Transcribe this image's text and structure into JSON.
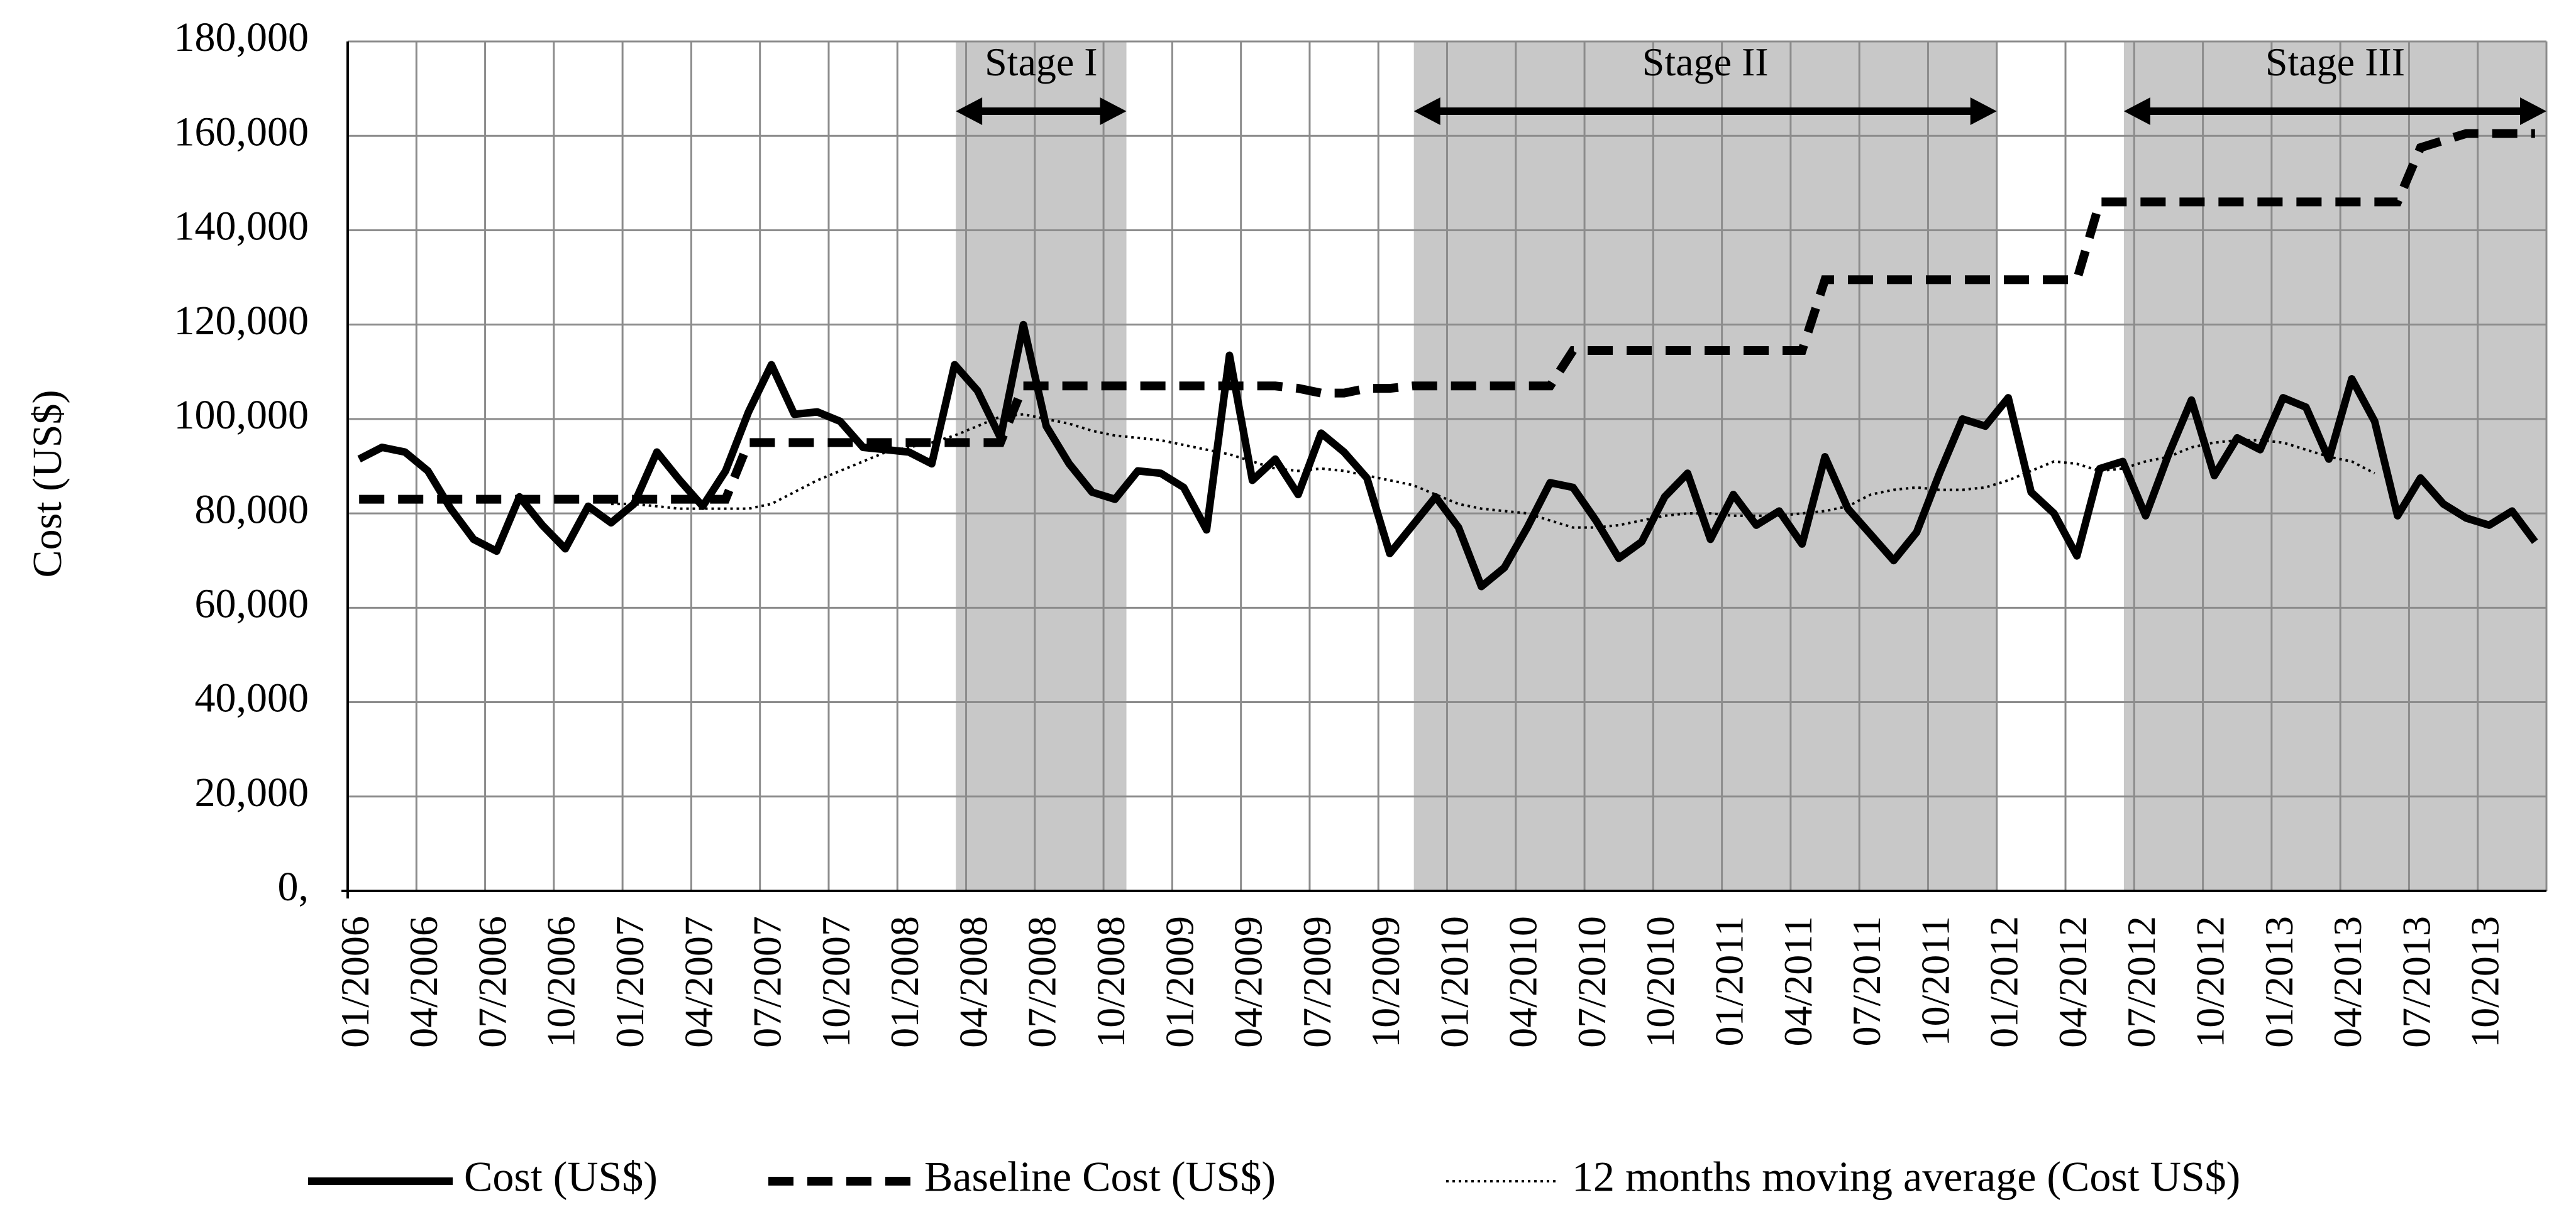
{
  "chart_data": {
    "type": "line",
    "title": "",
    "ylabel": "Cost (US$)",
    "xlabel": "",
    "ylim": [
      0,
      180000
    ],
    "y_ticks": [
      0,
      20000,
      40000,
      60000,
      80000,
      100000,
      120000,
      140000,
      160000,
      180000
    ],
    "y_tick_labels": [
      "0,",
      "20,000",
      "40,000",
      "60,000",
      "80,000",
      "100,000",
      "120,000",
      "140,000",
      "160,000",
      "180,000"
    ],
    "x_range": [
      "01/2006",
      "12/2013"
    ],
    "x_tick_labels": [
      "01/2006",
      "04/2006",
      "07/2006",
      "10/2006",
      "01/2007",
      "04/2007",
      "07/2007",
      "10/2007",
      "01/2008",
      "04/2008",
      "07/2008",
      "10/2008",
      "01/2009",
      "04/2009",
      "07/2009",
      "10/2009",
      "01/2010",
      "04/2010",
      "07/2010",
      "10/2010",
      "01/2011",
      "04/2011",
      "07/2011",
      "10/2011",
      "01/2012",
      "04/2012",
      "07/2012",
      "10/2012",
      "01/2013",
      "04/2013",
      "07/2013",
      "10/2013"
    ],
    "grid": true,
    "legend_position": "bottom",
    "stages": [
      {
        "label": "Stage I",
        "start": "03/2008",
        "end": "10/2008"
      },
      {
        "label": "Stage II",
        "start": "11/2009",
        "end": "12/2011"
      },
      {
        "label": "Stage III",
        "start": "06/2012",
        "end": "12/2013"
      }
    ],
    "stage_shade_color": "#c8c8c8",
    "series": [
      {
        "name": "Cost (US$)",
        "style": "solid",
        "values": [
          91500,
          94000,
          93000,
          89000,
          81000,
          74500,
          72000,
          83500,
          77500,
          72500,
          81500,
          78000,
          82000,
          93000,
          87000,
          81500,
          89000,
          101500,
          111500,
          101000,
          101500,
          99500,
          94000,
          93500,
          93000,
          90500,
          111500,
          106000,
          96000,
          120000,
          98500,
          90500,
          84500,
          83000,
          89000,
          88500,
          85500,
          76500,
          113500,
          87000,
          91500,
          84000,
          97000,
          93000,
          87500,
          71500,
          77500,
          83500,
          77000,
          64500,
          68500,
          77000,
          86500,
          85500,
          78500,
          70500,
          74000,
          83500,
          88500,
          74500,
          84000,
          77500,
          80500,
          73500,
          92000,
          81000,
          75500,
          70000,
          76000,
          88500,
          100000,
          98500,
          104500,
          84500,
          80000,
          71000,
          89500,
          91000,
          79500,
          92500,
          104000,
          88000,
          96000,
          93500,
          104500,
          102500,
          91500,
          108500,
          99500,
          79500,
          87500,
          82000,
          79000,
          77500,
          80500,
          74000
        ]
      },
      {
        "name": "Baseline Cost (US$)",
        "style": "dashed",
        "values": [
          83000,
          83000,
          83000,
          83000,
          83000,
          83000,
          83000,
          83000,
          83000,
          83000,
          83000,
          83000,
          83000,
          83000,
          83000,
          83000,
          83000,
          95000,
          95000,
          95000,
          95000,
          95000,
          95000,
          95000,
          95000,
          95000,
          95000,
          95000,
          95000,
          107000,
          107000,
          107000,
          107000,
          107000,
          107000,
          107000,
          107000,
          107000,
          107000,
          107000,
          107000,
          106500,
          105500,
          105500,
          106500,
          106500,
          107000,
          107000,
          107000,
          107000,
          107000,
          107000,
          107000,
          114500,
          114500,
          114500,
          114500,
          114500,
          114500,
          114500,
          114500,
          114500,
          114500,
          114500,
          129500,
          129500,
          129500,
          129500,
          129500,
          129500,
          129500,
          129500,
          129500,
          129500,
          129500,
          129500,
          146000,
          146000,
          146000,
          146000,
          146000,
          146000,
          146000,
          146000,
          146000,
          146000,
          146000,
          146000,
          146000,
          146000,
          157500,
          159000,
          160500,
          160500,
          160500,
          160500
        ]
      },
      {
        "name": "12 months moving average (Cost US$)",
        "style": "dotted",
        "start_index": 11,
        "values": [
          82000,
          82000,
          81500,
          81000,
          81000,
          81000,
          81000,
          82000,
          84500,
          87000,
          89000,
          91000,
          93000,
          94000,
          95000,
          96500,
          98500,
          100500,
          101000,
          100000,
          99000,
          97500,
          96500,
          96000,
          95500,
          94500,
          93500,
          92500,
          91000,
          89500,
          89000,
          89500,
          89000,
          88000,
          87000,
          86000,
          84000,
          82000,
          81000,
          80500,
          80000,
          78500,
          77000,
          77000,
          77500,
          78500,
          79500,
          80000,
          80000,
          79500,
          79500,
          79500,
          80000,
          80500,
          81500,
          84000,
          85000,
          85500,
          85000,
          85000,
          85500,
          87000,
          89000,
          91000,
          90500,
          89000,
          89500,
          91000,
          92000,
          94000,
          95000,
          95500,
          95500,
          95000,
          93500,
          92000,
          91000,
          88500
        ]
      }
    ]
  }
}
